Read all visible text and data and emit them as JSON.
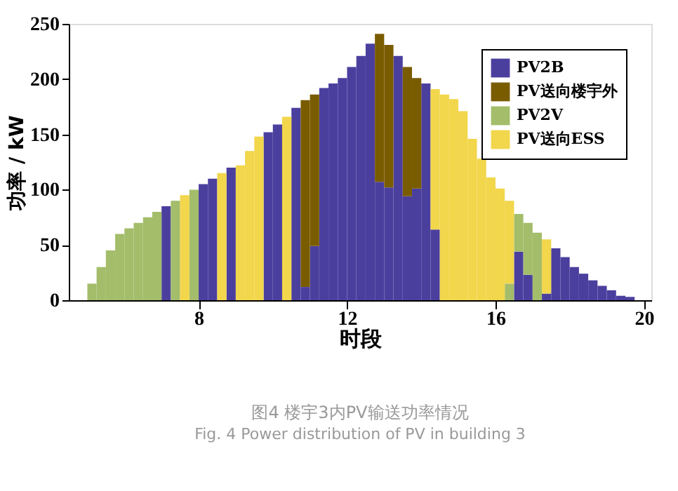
{
  "chart_data": {
    "type": "bar",
    "stacked": true,
    "xlabel": "时段",
    "ylabel": "功率 / kW",
    "x": [
      5.125,
      5.375,
      5.625,
      5.875,
      6.125,
      6.375,
      6.625,
      6.875,
      7.125,
      7.375,
      7.625,
      7.875,
      8.125,
      8.375,
      8.625,
      8.875,
      9.125,
      9.375,
      9.625,
      9.875,
      10.125,
      10.375,
      10.625,
      10.875,
      11.125,
      11.375,
      11.625,
      11.875,
      12.125,
      12.375,
      12.625,
      12.875,
      13.125,
      13.375,
      13.625,
      13.875,
      14.125,
      14.375,
      14.625,
      14.875,
      15.125,
      15.375,
      15.625,
      15.875,
      16.125,
      16.375,
      16.625,
      16.875,
      17.125,
      17.375,
      17.625,
      17.875,
      18.125,
      18.375,
      18.625,
      18.875,
      19.125,
      19.375,
      19.625
    ],
    "xlim": [
      4.5,
      20.2
    ],
    "xticks": [
      8,
      12,
      16,
      20
    ],
    "ylim": [
      0,
      250
    ],
    "yticks": [
      0,
      50,
      100,
      150,
      200,
      250
    ],
    "series": [
      {
        "name": "PV2B",
        "color": "#4b3f9e",
        "values": [
          null,
          null,
          null,
          null,
          null,
          null,
          null,
          null,
          85,
          null,
          null,
          null,
          105,
          110,
          null,
          120,
          null,
          null,
          null,
          152,
          159,
          null,
          174,
          12,
          49,
          192,
          196,
          201,
          211,
          221,
          232,
          107,
          102,
          221,
          94,
          101,
          196,
          64,
          null,
          null,
          null,
          null,
          null,
          null,
          null,
          null,
          44,
          23,
          null,
          6,
          47,
          39,
          30,
          24,
          18,
          13,
          9,
          4,
          3
        ]
      },
      {
        "name": "PV送向楼宇外",
        "color": "#7a5c00",
        "values": [
          null,
          null,
          null,
          null,
          null,
          null,
          null,
          null,
          null,
          null,
          null,
          null,
          null,
          null,
          null,
          null,
          null,
          null,
          null,
          null,
          null,
          null,
          null,
          169,
          137,
          null,
          null,
          null,
          null,
          null,
          null,
          134,
          129,
          null,
          117,
          100,
          null,
          null,
          null,
          null,
          null,
          null,
          null,
          null,
          null,
          null,
          null,
          null,
          null,
          null,
          null,
          null,
          null,
          null,
          null,
          null,
          null,
          null,
          null
        ]
      },
      {
        "name": "PV2V",
        "color": "#a3bd6a",
        "values": [
          15,
          30,
          45,
          60,
          65,
          70,
          75,
          80,
          null,
          90,
          null,
          100,
          null,
          null,
          null,
          null,
          null,
          null,
          null,
          null,
          null,
          null,
          null,
          null,
          null,
          null,
          null,
          null,
          null,
          null,
          null,
          null,
          null,
          null,
          null,
          null,
          null,
          null,
          null,
          null,
          null,
          null,
          null,
          null,
          null,
          15,
          34,
          47,
          61,
          null,
          null,
          null,
          null,
          null,
          null,
          null,
          null,
          null,
          null
        ]
      },
      {
        "name": "PV送向ESS",
        "color": "#f2d64b",
        "values": [
          null,
          null,
          null,
          null,
          null,
          null,
          null,
          null,
          null,
          null,
          95,
          null,
          null,
          null,
          115,
          null,
          122,
          135,
          148,
          null,
          null,
          166,
          null,
          null,
          null,
          null,
          null,
          null,
          null,
          null,
          null,
          null,
          null,
          null,
          null,
          null,
          null,
          127,
          186,
          182,
          171,
          146,
          128,
          111,
          101,
          75,
          null,
          null,
          null,
          49,
          null,
          null,
          null,
          null,
          null,
          null,
          null,
          null,
          null
        ]
      }
    ],
    "legend": "top right",
    "grid": false,
    "annotations": [
      "图4 楼宇3内PV输送功率情况",
      "Fig. 4 Power distribution of PV in building 3"
    ]
  }
}
